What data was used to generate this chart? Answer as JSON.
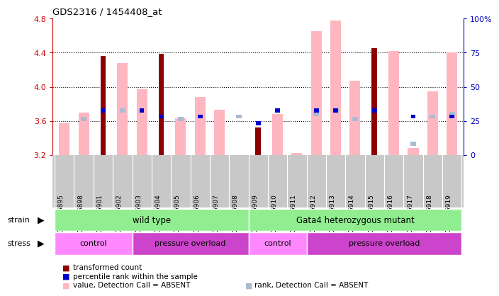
{
  "title": "GDS2316 / 1454408_at",
  "samples": [
    "GSM126895",
    "GSM126898",
    "GSM126901",
    "GSM126902",
    "GSM126903",
    "GSM126904",
    "GSM126905",
    "GSM126906",
    "GSM126907",
    "GSM126908",
    "GSM126909",
    "GSM126910",
    "GSM126911",
    "GSM126912",
    "GSM126913",
    "GSM126914",
    "GSM126915",
    "GSM126916",
    "GSM126917",
    "GSM126918",
    "GSM126919"
  ],
  "red_bar_values": [
    null,
    null,
    4.36,
    null,
    null,
    4.39,
    null,
    null,
    null,
    null,
    3.52,
    null,
    null,
    null,
    null,
    null,
    4.45,
    null,
    null,
    null,
    null
  ],
  "blue_dot_values": [
    null,
    null,
    3.72,
    null,
    3.72,
    3.65,
    null,
    3.65,
    null,
    null,
    3.57,
    3.72,
    null,
    3.72,
    3.72,
    null,
    3.72,
    null,
    3.65,
    null,
    3.65
  ],
  "pink_bar_values": [
    3.57,
    3.7,
    null,
    4.28,
    3.97,
    null,
    3.63,
    3.88,
    3.73,
    null,
    null,
    3.68,
    3.22,
    4.65,
    4.78,
    4.07,
    null,
    4.42,
    3.28,
    3.95,
    4.4
  ],
  "lightblue_dot_values": [
    null,
    3.62,
    null,
    3.72,
    null,
    null,
    3.62,
    null,
    null,
    3.65,
    null,
    null,
    null,
    3.68,
    3.72,
    3.62,
    null,
    null,
    3.33,
    3.65,
    3.68
  ],
  "ylim_left": [
    3.2,
    4.8
  ],
  "ylim_right": [
    0,
    100
  ],
  "y_ticks_left": [
    3.2,
    3.6,
    4.0,
    4.4,
    4.8
  ],
  "y_ticks_right": [
    0,
    25,
    50,
    75,
    100
  ],
  "right_tick_labels": [
    "0",
    "25",
    "50",
    "75",
    "100%"
  ],
  "red_color": "#8B0000",
  "blue_color": "#0000CD",
  "pink_color": "#FFB6C1",
  "lightblue_color": "#AABBD0",
  "strain_green": "#90EE90",
  "control_color": "#FF88FF",
  "pressure_color": "#CC44CC",
  "label_gray": "#C8C8C8",
  "left_axis_color": "#CC0000",
  "right_axis_color": "#0000BB",
  "dotted_ticks": [
    3.6,
    4.0,
    4.4
  ],
  "legend_items": [
    {
      "color": "#8B0000",
      "label": "transformed count"
    },
    {
      "color": "#0000CD",
      "label": "percentile rank within the sample"
    },
    {
      "color": "#FFB6C1",
      "label": "value, Detection Call = ABSENT"
    },
    {
      "color": "#AABBD0",
      "label": "rank, Detection Call = ABSENT"
    }
  ]
}
